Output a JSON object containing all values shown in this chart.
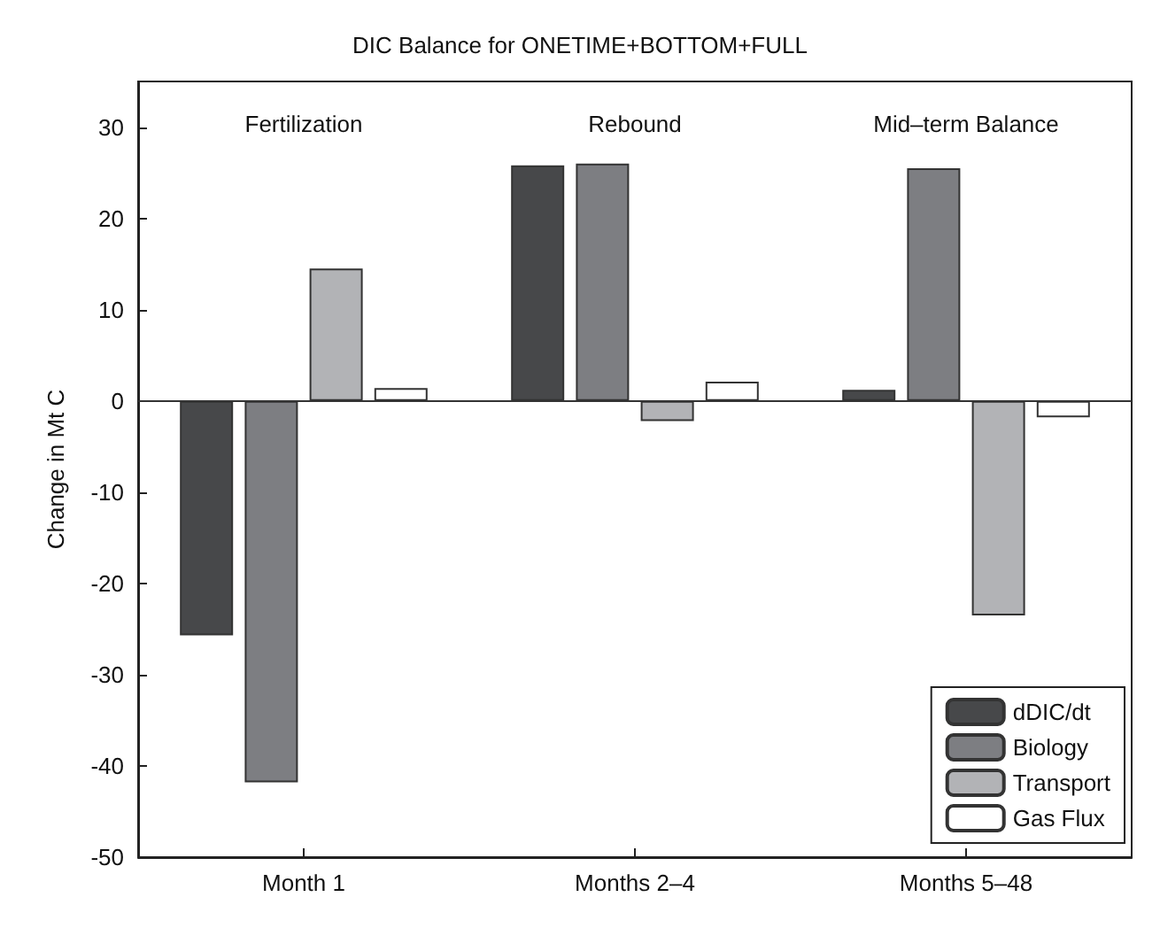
{
  "chart_data": {
    "type": "bar",
    "title": "DIC Balance for ONETIME+BOTTOM+FULL",
    "ylabel": "Change in Mt C",
    "categories": [
      "Month 1",
      "Months 2–4",
      "Months 5–48"
    ],
    "series": [
      {
        "name": "dDIC/dt",
        "color": "#47484a",
        "values": [
          -25.7,
          25.8,
          1.2
        ]
      },
      {
        "name": "Biology",
        "color": "#7d7e82",
        "values": [
          -41.8,
          26,
          25.5
        ]
      },
      {
        "name": "Transport",
        "color": "#b2b3b6",
        "values": [
          14.5,
          -2.2,
          -23.5
        ]
      },
      {
        "name": "Gas Flux",
        "color": "#ffffff",
        "values": [
          1.4,
          2.1,
          -1.8
        ]
      }
    ],
    "annotations": [
      "Fertilization",
      "Rebound",
      "Mid–term Balance"
    ],
    "ref_lines": [
      {
        "axis": "y",
        "value": 0,
        "color": "#333333"
      }
    ],
    "ylim": [
      -50,
      35
    ],
    "yticks": [
      -50,
      -40,
      -30,
      -20,
      -10,
      0,
      10,
      20,
      30
    ],
    "grid": false,
    "legend": "bottom right"
  }
}
